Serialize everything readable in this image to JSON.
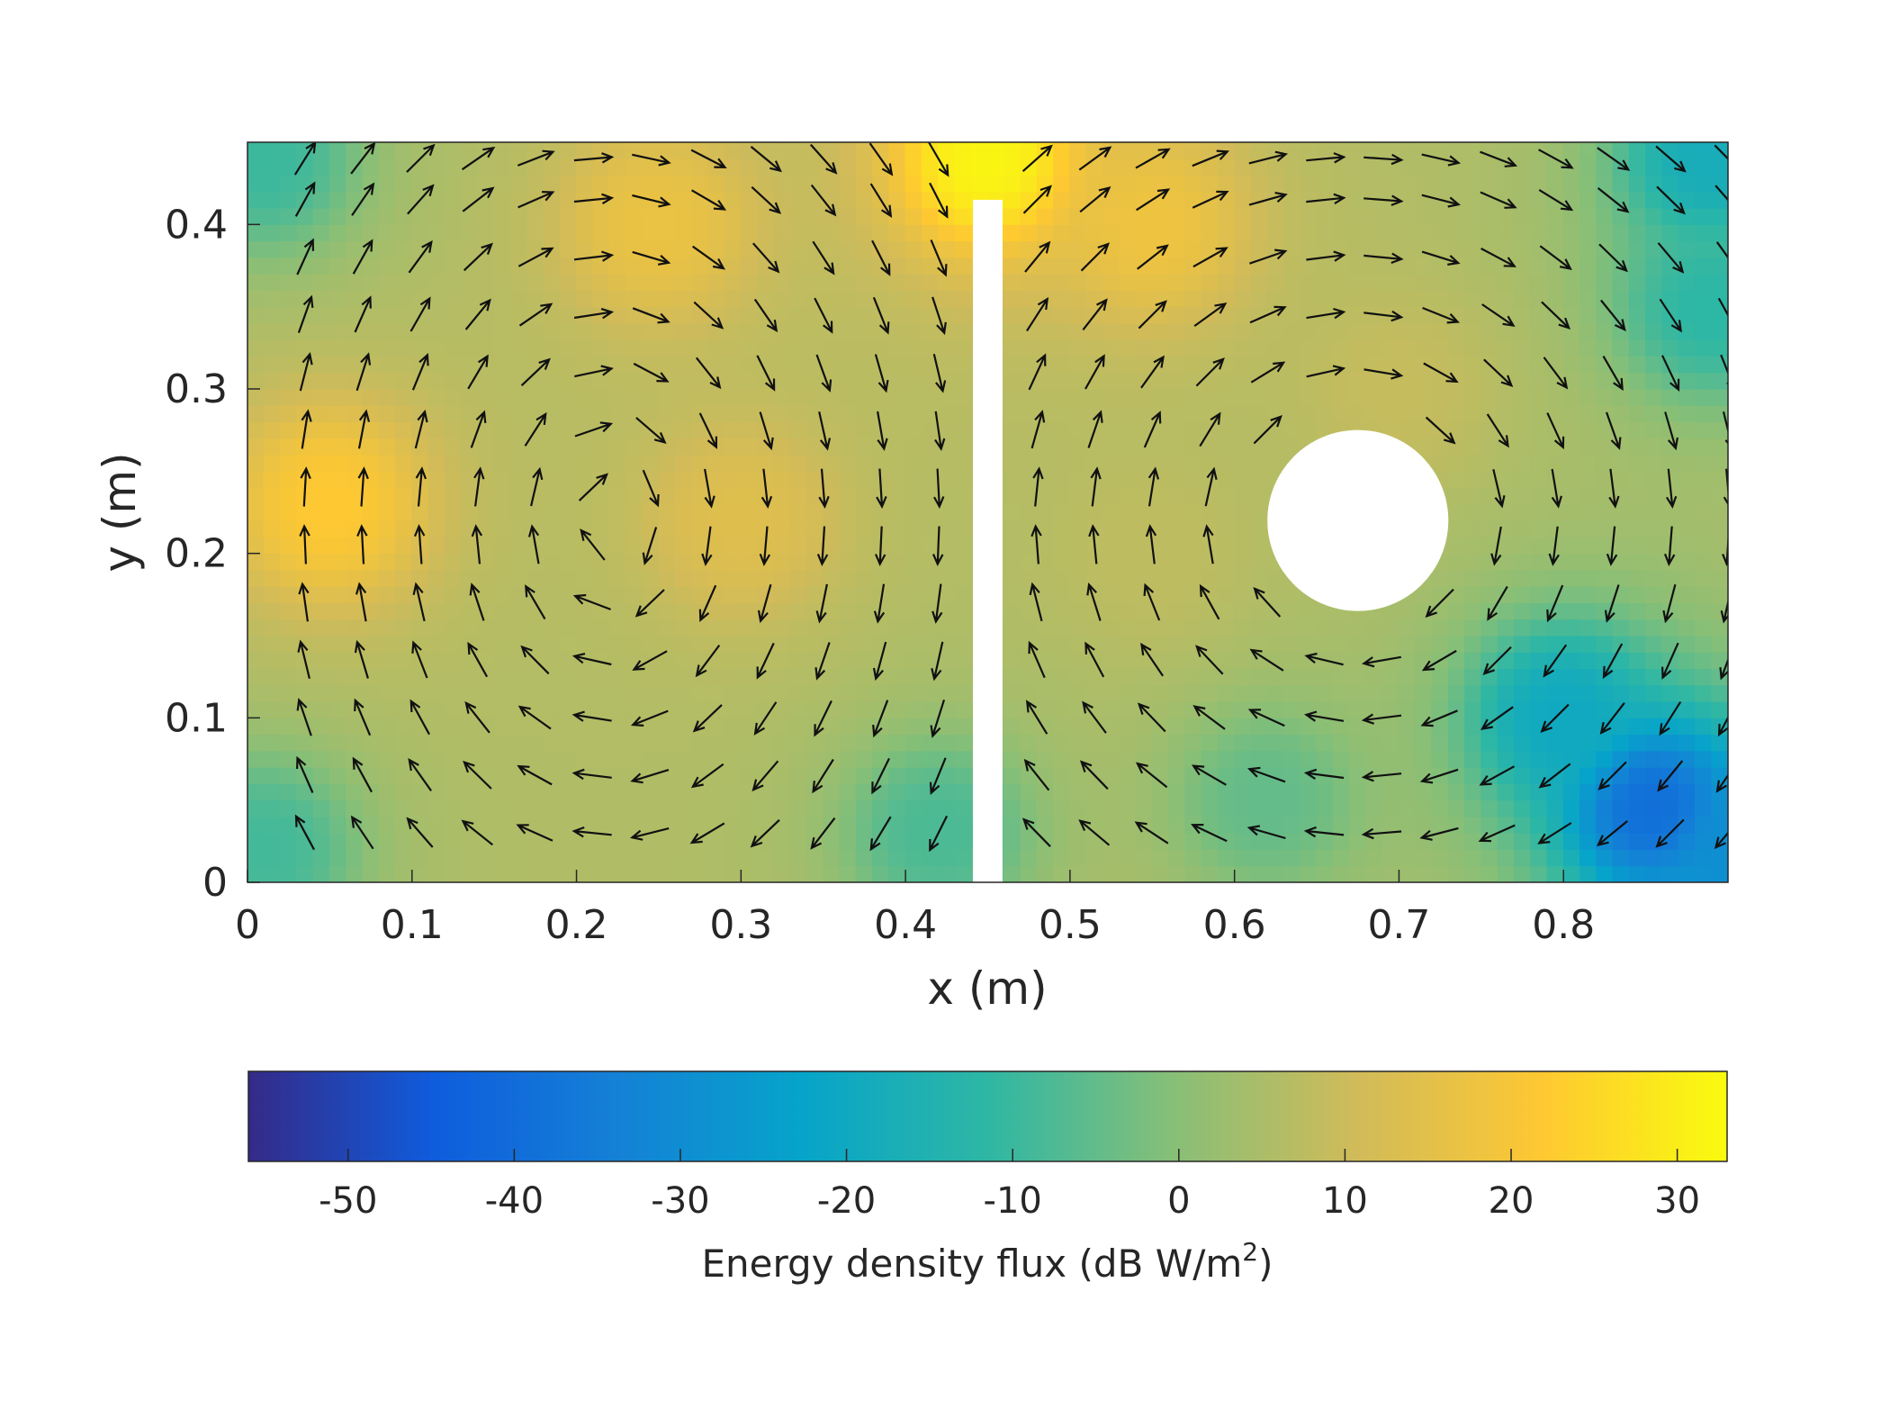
{
  "chart_data": {
    "type": "heatmap",
    "subtype": "filled contour with quiver (vector) overlay",
    "title": "",
    "xlabel": "x (m)",
    "ylabel": "y (m)",
    "xlim": [
      0,
      0.9
    ],
    "ylim": [
      0,
      0.45
    ],
    "xticks": [
      0,
      0.1,
      0.2,
      0.3,
      0.4,
      0.5,
      0.6,
      0.7,
      0.8
    ],
    "xtick_labels": [
      "0",
      "0.1",
      "0.2",
      "0.3",
      "0.4",
      "0.5",
      "0.6",
      "0.7",
      "0.8"
    ],
    "yticks": [
      0,
      0.1,
      0.2,
      0.3,
      0.4
    ],
    "ytick_labels": [
      "0",
      "0.1",
      "0.2",
      "0.3",
      "0.4"
    ],
    "colormap": "parula",
    "colormap_stops": [
      "#352a87",
      "#0f5cdd",
      "#1481d6",
      "#06a4ca",
      "#2eb7a4",
      "#87bf77",
      "#d1bb59",
      "#fec832",
      "#f9fb0e"
    ],
    "colorbar": {
      "title": "Energy density flux (dB W/m",
      "title_superscript": "2",
      "title_suffix": ")",
      "limits": [
        -56,
        33
      ],
      "ticks": [
        -50,
        -40,
        -30,
        -20,
        -10,
        0,
        10,
        20,
        30
      ],
      "tick_labels": [
        "-50",
        "-40",
        "-30",
        "-20",
        "-10",
        "0",
        "10",
        "20",
        "30"
      ],
      "orientation": "horizontal",
      "placement": "below plot"
    },
    "field_hotspots": [
      {
        "x": 0.45,
        "y": 0.44,
        "value": 32
      },
      {
        "x": 0.05,
        "y": 0.23,
        "value": 22
      },
      {
        "x": 0.25,
        "y": 0.4,
        "value": 17
      },
      {
        "x": 0.55,
        "y": 0.4,
        "value": 18
      },
      {
        "x": 0.3,
        "y": 0.22,
        "value": 14
      },
      {
        "x": 0.55,
        "y": 0.2,
        "value": 8
      },
      {
        "x": 0.7,
        "y": 0.3,
        "value": 9
      },
      {
        "x": 0.62,
        "y": 0.05,
        "value": -5
      },
      {
        "x": 0.42,
        "y": 0.03,
        "value": -8
      },
      {
        "x": 0.01,
        "y": 0.44,
        "value": -10
      },
      {
        "x": 0.01,
        "y": 0.02,
        "value": -9
      },
      {
        "x": 0.89,
        "y": 0.44,
        "value": -18
      },
      {
        "x": 0.89,
        "y": 0.35,
        "value": -12
      },
      {
        "x": 0.8,
        "y": 0.1,
        "value": -20
      },
      {
        "x": 0.855,
        "y": 0.045,
        "value": -40
      },
      {
        "x": 0.9,
        "y": 0.02,
        "value": -30
      }
    ],
    "field_base_value": 6,
    "obstacles": [
      {
        "kind": "wall",
        "x_range": [
          0.441,
          0.459
        ],
        "y_range": [
          0,
          0.415
        ]
      },
      {
        "kind": "disc",
        "center": [
          0.675,
          0.22
        ],
        "radius": 0.055
      }
    ],
    "vector_field": {
      "description": "energy flux direction vectors",
      "grid_x": [
        0.035,
        0.07,
        0.105,
        0.14,
        0.175,
        0.21,
        0.245,
        0.28,
        0.315,
        0.35,
        0.385,
        0.42,
        0.48,
        0.515,
        0.55,
        0.585,
        0.62,
        0.655,
        0.69,
        0.725,
        0.76,
        0.795,
        0.83,
        0.865,
        0.9
      ],
      "grid_y": [
        0.03,
        0.065,
        0.1,
        0.135,
        0.17,
        0.205,
        0.24,
        0.275,
        0.31,
        0.345,
        0.38,
        0.415,
        0.44
      ],
      "vortices": [
        {
          "center": [
            0.22,
            0.22
          ],
          "sense": "clockwise"
        },
        {
          "center": [
            0.675,
            0.22
          ],
          "sense": "clockwise"
        }
      ]
    }
  }
}
